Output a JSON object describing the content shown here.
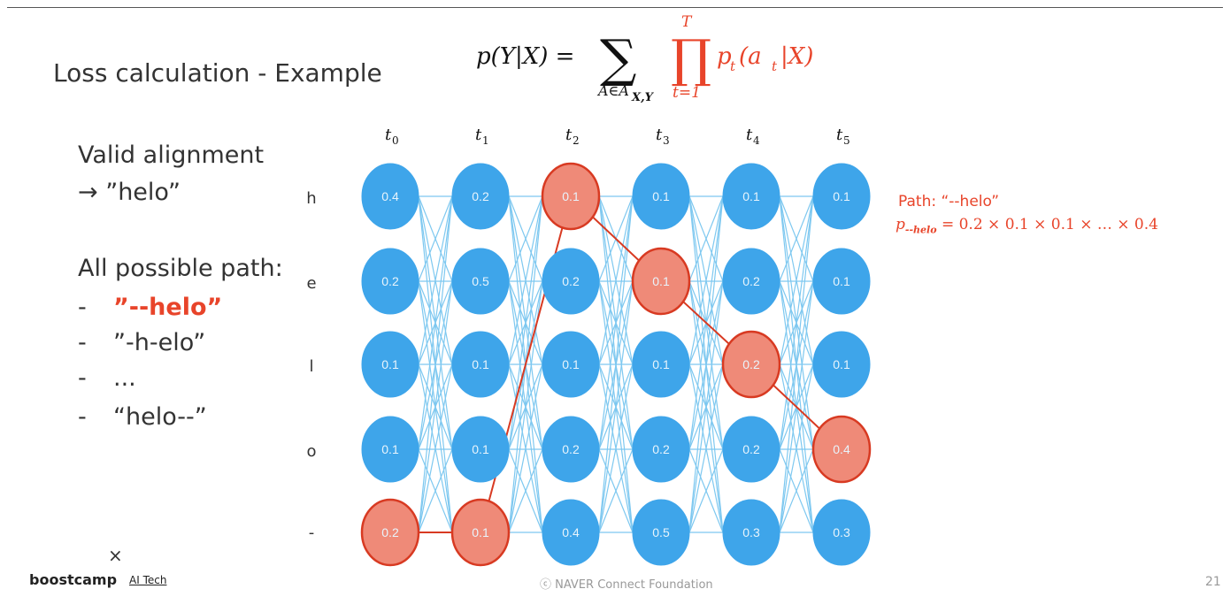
{
  "slide": {
    "title": "Loss calculation - Example",
    "left": {
      "valid_heading": "Valid alignment",
      "valid_value": "→ ”helo”",
      "possible_heading": "All possible path:",
      "paths": [
        {
          "dash": "-",
          "text": "”--helo”",
          "highlight": true
        },
        {
          "dash": "-",
          "text": "”-h-elo”",
          "highlight": false
        },
        {
          "dash": "-",
          "text": "...",
          "highlight": false
        },
        {
          "dash": "-",
          "text": "“helo--”",
          "highlight": false
        }
      ]
    },
    "formula": {
      "lhs": "p(Y|X) =",
      "sum_sub": "A∈A",
      "sum_sub_index": "X,Y",
      "prod_top": "T",
      "prod_bottom": "t=1",
      "term": "p",
      "term_sub": "t",
      "term_arg": "(a",
      "term_arg_sub": "t",
      "term_end": "|X)"
    },
    "time_labels": [
      "t",
      "t",
      "t",
      "t",
      "t",
      "t"
    ],
    "time_indices": [
      "0",
      "1",
      "2",
      "3",
      "4",
      "5"
    ],
    "row_labels": [
      "h",
      "e",
      "l",
      "o",
      "-"
    ],
    "grid": [
      [
        "0.4",
        "0.2",
        "0.1",
        "0.1",
        "0.1",
        "0.1"
      ],
      [
        "0.2",
        "0.5",
        "0.2",
        "0.1",
        "0.2",
        "0.1"
      ],
      [
        "0.1",
        "0.1",
        "0.1",
        "0.1",
        "0.2",
        "0.1"
      ],
      [
        "0.1",
        "0.1",
        "0.2",
        "0.2",
        "0.2",
        "0.4"
      ],
      [
        "0.2",
        "0.1",
        "0.4",
        "0.5",
        "0.3",
        "0.3"
      ]
    ],
    "highlighted_path_rows": [
      4,
      4,
      0,
      1,
      2,
      3
    ],
    "path_note": "Path: “--helo”",
    "path_formula": {
      "p": "p",
      "sub": "--helo",
      "rhs": "= 0.2 × 0.1 × 0.1 × … × 0.4"
    },
    "colors": {
      "node": "#3ea5ea",
      "highlight": "#ef8a78",
      "highlight_stroke": "#d83a22",
      "edge": "#7ec8f0",
      "accent": "#e8442a"
    }
  },
  "footer": {
    "brand": "boostcamp",
    "brand_sub": "AI Tech",
    "cross": "×",
    "copyright": "ⓒ NAVER Connect Foundation",
    "page": "21"
  }
}
